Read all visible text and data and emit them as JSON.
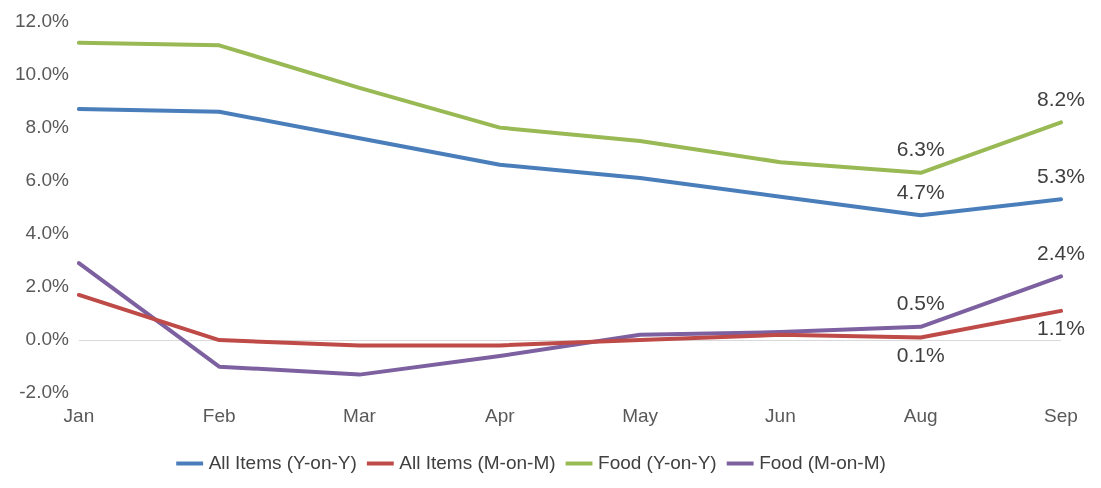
{
  "chart_data": {
    "type": "line",
    "categories": [
      "Jan",
      "Feb",
      "Mar",
      "Apr",
      "May",
      "Jun",
      "Aug",
      "Sep"
    ],
    "ylim": [
      -2,
      12
    ],
    "yticks": [
      {
        "value": -2,
        "label": "-2.0%"
      },
      {
        "value": 0,
        "label": "0.0%"
      },
      {
        "value": 2,
        "label": "2.0%"
      },
      {
        "value": 4,
        "label": "4.0%"
      },
      {
        "value": 6,
        "label": "6.0%"
      },
      {
        "value": 8,
        "label": "8.0%"
      },
      {
        "value": 10,
        "label": "10.0%"
      },
      {
        "value": 12,
        "label": "12.0%"
      }
    ],
    "grid": false,
    "ref_lines": [
      {
        "axis": "y",
        "value": 0,
        "color": "#d9d9d9"
      }
    ],
    "legend": "bottom",
    "marker": "none",
    "line_style": "solid",
    "series": [
      {
        "name": "All Items (Y-on-Y)",
        "color": "#4a7ebb",
        "values": [
          8.7,
          8.6,
          7.6,
          6.6,
          6.1,
          5.4,
          4.7,
          5.3
        ],
        "value_labels": [
          null,
          null,
          null,
          null,
          null,
          null,
          "4.7%",
          "5.3%"
        ]
      },
      {
        "name": "All Items (M-on-M)",
        "color": "#be4b48",
        "values": [
          1.7,
          0.0,
          -0.2,
          -0.2,
          0.0,
          0.2,
          0.1,
          1.1
        ],
        "value_labels": [
          null,
          null,
          null,
          null,
          null,
          null,
          "0.1%",
          "1.1%"
        ]
      },
      {
        "name": "Food (Y-on-Y)",
        "color": "#98b954",
        "values": [
          11.2,
          11.1,
          9.5,
          8.0,
          7.5,
          6.7,
          6.3,
          8.2
        ],
        "value_labels": [
          null,
          null,
          null,
          null,
          null,
          null,
          "6.3%",
          "8.2%"
        ]
      },
      {
        "name": "Food (M-on-M)",
        "color": "#7d60a0",
        "values": [
          2.9,
          -1.0,
          -1.3,
          -0.6,
          0.2,
          0.3,
          0.5,
          2.4
        ],
        "value_labels": [
          null,
          null,
          null,
          null,
          null,
          null,
          "0.5%",
          "2.4%"
        ]
      }
    ]
  }
}
